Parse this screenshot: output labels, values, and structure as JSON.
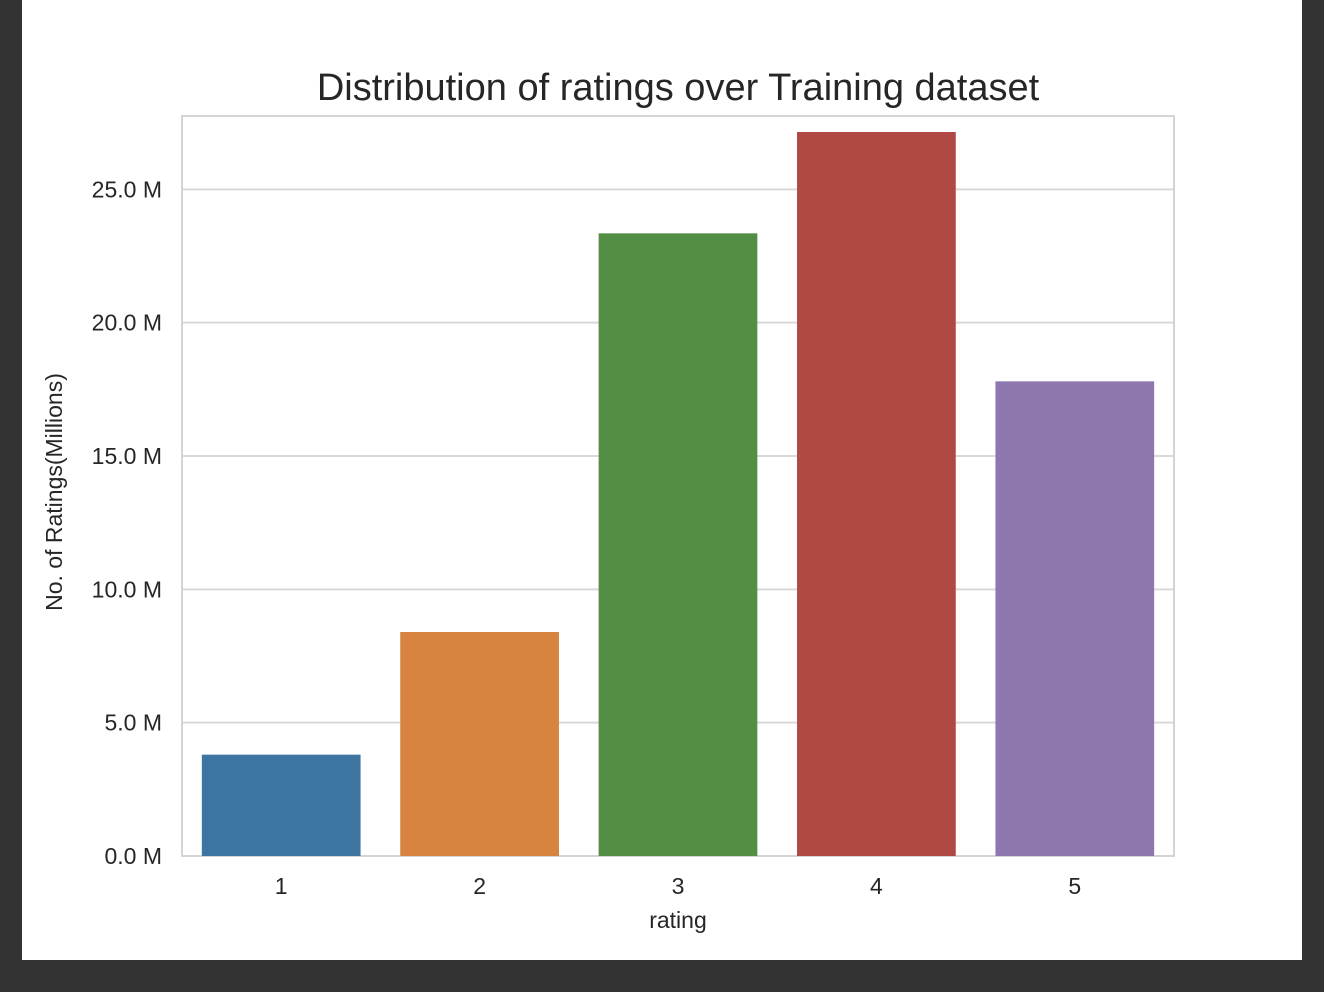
{
  "chart_data": {
    "type": "bar",
    "title": "Distribution of ratings over Training dataset",
    "xlabel": "rating",
    "ylabel": "No. of Ratings(Millions)",
    "categories": [
      "1",
      "2",
      "3",
      "4",
      "5"
    ],
    "values": [
      3.8,
      8.4,
      23.35,
      27.15,
      17.8
    ],
    "ylim": [
      0,
      27.75
    ],
    "yticks": [
      0,
      5,
      10,
      15,
      20,
      25
    ],
    "ytick_labels": [
      "0.0 M",
      "5.0 M",
      "10.0 M",
      "15.0 M",
      "20.0 M",
      "25.0 M"
    ],
    "grid": true,
    "colors": [
      "#3e74a1",
      "#d6843f",
      "#528f45",
      "#b04844",
      "#8e76ae"
    ]
  }
}
